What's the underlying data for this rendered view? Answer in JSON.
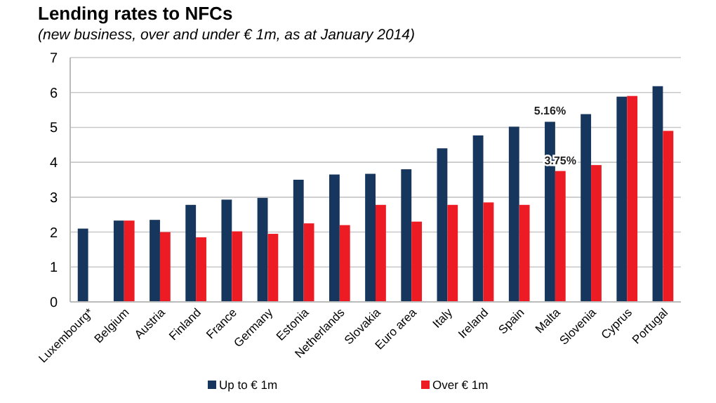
{
  "chart_data": {
    "type": "bar",
    "title": "Lending rates to NFCs",
    "subtitle": "(new business, over and under € 1m, as at January 2014)",
    "categories": [
      "Luxembourg*",
      "Belgium",
      "Austria",
      "Finland",
      "France",
      "Germany",
      "Estonia",
      "Netherlands",
      "Slovakia",
      "Euro area",
      "Italy",
      "Ireland",
      "Spain",
      "Malta",
      "Slovenia",
      "Cyprus",
      "Portugal"
    ],
    "series": [
      {
        "name": "Up to € 1m",
        "color": "#17365d",
        "values": [
          2.1,
          2.33,
          2.35,
          2.78,
          2.93,
          2.98,
          3.5,
          3.65,
          3.67,
          3.8,
          4.4,
          4.77,
          5.02,
          5.16,
          5.38,
          5.88,
          6.18
        ],
        "value_labels": [
          null,
          null,
          null,
          null,
          null,
          null,
          null,
          null,
          null,
          null,
          null,
          null,
          null,
          "5.16%",
          null,
          null,
          null
        ]
      },
      {
        "name": "Over € 1m",
        "color": "#ed1c24",
        "values": [
          null,
          2.33,
          2.0,
          1.85,
          2.02,
          1.95,
          2.25,
          2.2,
          2.78,
          2.3,
          2.78,
          2.85,
          2.78,
          3.75,
          3.92,
          5.9,
          4.9
        ],
        "value_labels": [
          null,
          null,
          null,
          null,
          null,
          null,
          null,
          null,
          null,
          null,
          null,
          null,
          null,
          "3.75%",
          null,
          null,
          null
        ]
      }
    ],
    "ylim": [
      0,
      7
    ],
    "yticks": [
      0,
      1,
      2,
      3,
      4,
      5,
      6,
      7
    ],
    "grid": "y",
    "legend": "bottom"
  }
}
